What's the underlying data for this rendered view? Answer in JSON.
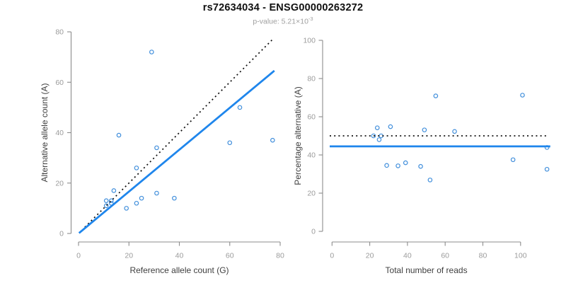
{
  "header": {
    "title": "rs72634034 - ENSG00000263272",
    "subtitle_prefix": "p-value: ",
    "subtitle_mantissa": "5.21×10",
    "subtitle_exponent": "-3"
  },
  "colors": {
    "fit_line_blue": "#1f86ec",
    "point_blue": "#4390dc",
    "dotted_line_black": "#141414",
    "axis_gray": "#8c8c8c",
    "tick_label_gray": "#9b9b9b",
    "axis_title_gray": "#3f3f3f",
    "title_black": "#111111",
    "subtitle_gray": "#9f9f9f"
  },
  "chart_data": [
    {
      "type": "scatter",
      "panel": "left",
      "xlabel": "Reference allele count (G)",
      "ylabel": "Alternative allele count (A)",
      "xlim": [
        0,
        80
      ],
      "ylim": [
        0,
        80
      ],
      "xticks": [
        0,
        20,
        40,
        60,
        80
      ],
      "yticks": [
        0,
        20,
        40,
        60,
        80
      ],
      "grid": false,
      "legend": false,
      "points": [
        [
          29,
          72
        ],
        [
          16,
          39
        ],
        [
          64,
          50
        ],
        [
          77,
          37
        ],
        [
          60,
          36
        ],
        [
          31,
          34
        ],
        [
          23,
          26
        ],
        [
          14,
          17
        ],
        [
          31,
          16
        ],
        [
          38,
          14
        ],
        [
          25,
          14
        ],
        [
          23,
          12
        ],
        [
          19,
          10
        ],
        [
          11,
          13
        ],
        [
          13,
          13
        ],
        [
          13,
          12
        ],
        [
          11,
          11
        ]
      ],
      "identity_line": {
        "style": "dotted",
        "slope": 1,
        "intercept": 0,
        "x_range": [
          2.5,
          77
        ]
      },
      "fit_line": {
        "style": "solid",
        "slope": 0.831,
        "intercept": 0,
        "x_range": [
          0.2,
          77.7
        ]
      }
    },
    {
      "type": "scatter",
      "panel": "right",
      "xlabel": "Total number of reads",
      "ylabel": "Percentage alternative (A)",
      "xlim": [
        0,
        115
      ],
      "ylim": [
        0,
        100
      ],
      "xticks": [
        0,
        20,
        40,
        60,
        80,
        100
      ],
      "yticks": [
        0,
        20,
        40,
        60,
        80,
        100
      ],
      "grid": false,
      "legend": false,
      "points": [
        [
          101,
          71.3
        ],
        [
          55,
          70.9
        ],
        [
          114,
          43.9
        ],
        [
          114,
          32.5
        ],
        [
          96,
          37.5
        ],
        [
          65,
          52.3
        ],
        [
          49,
          53.1
        ],
        [
          31,
          54.8
        ],
        [
          47,
          34.0
        ],
        [
          52,
          26.9
        ],
        [
          39,
          35.9
        ],
        [
          35,
          34.3
        ],
        [
          29,
          34.5
        ],
        [
          24,
          54.2
        ],
        [
          26,
          50.0
        ],
        [
          25,
          48.0
        ],
        [
          22,
          50.0
        ]
      ],
      "dotted_hline": 50,
      "fit_hline": 44.5
    }
  ]
}
